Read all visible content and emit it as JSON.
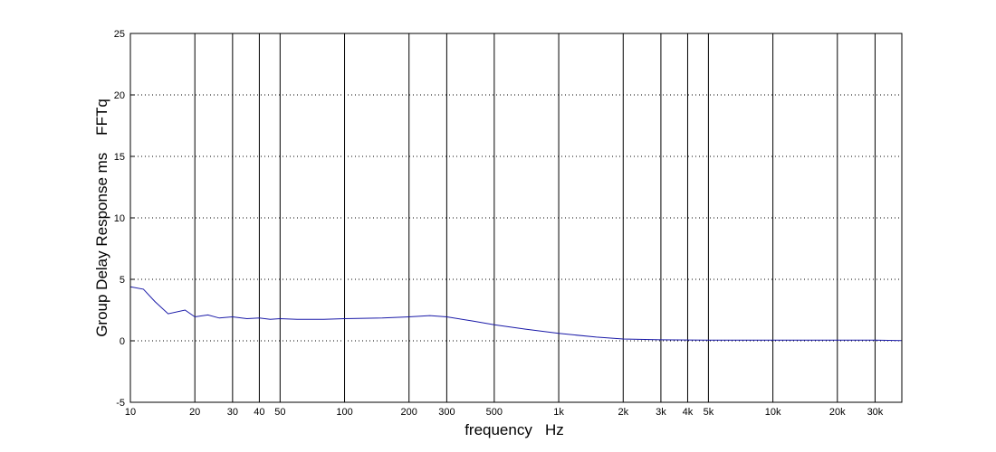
{
  "chart_data": {
    "type": "line",
    "title": "",
    "xlabel": "frequency   Hz",
    "ylabel": "Group Delay Response ms    FFTq",
    "x_scale": "log",
    "xlim": [
      10,
      40000
    ],
    "ylim": [
      -5,
      25
    ],
    "yticks": [
      -5,
      0,
      5,
      10,
      15,
      20,
      25
    ],
    "xticks": [
      {
        "value": 10,
        "label": "10"
      },
      {
        "value": 20,
        "label": "20"
      },
      {
        "value": 30,
        "label": "30"
      },
      {
        "value": 40,
        "label": "40"
      },
      {
        "value": 50,
        "label": "50"
      },
      {
        "value": 100,
        "label": "100"
      },
      {
        "value": 200,
        "label": "200"
      },
      {
        "value": 300,
        "label": "300"
      },
      {
        "value": 500,
        "label": "500"
      },
      {
        "value": 1000,
        "label": "1k"
      },
      {
        "value": 2000,
        "label": "2k"
      },
      {
        "value": 3000,
        "label": "3k"
      },
      {
        "value": 4000,
        "label": "4k"
      },
      {
        "value": 5000,
        "label": "5k"
      },
      {
        "value": 10000,
        "label": "10k"
      },
      {
        "value": 20000,
        "label": "20k"
      },
      {
        "value": 30000,
        "label": "30k"
      }
    ],
    "grid": {
      "x": "solid",
      "y": "dotted"
    },
    "line_color": "#1a1aa8",
    "series": [
      {
        "x": [
          10,
          11.5,
          13,
          15,
          18,
          20,
          23,
          26,
          30,
          35,
          40,
          45,
          50,
          60,
          80,
          100,
          150,
          200,
          250,
          300,
          400,
          500,
          700,
          1000,
          1500,
          2000,
          3000,
          5000,
          10000,
          20000,
          30000,
          40000
        ],
        "values": [
          4.4,
          4.2,
          3.2,
          2.2,
          2.5,
          1.95,
          2.1,
          1.85,
          1.95,
          1.8,
          1.85,
          1.75,
          1.8,
          1.75,
          1.75,
          1.8,
          1.85,
          1.95,
          2.05,
          1.95,
          1.6,
          1.3,
          0.95,
          0.6,
          0.3,
          0.15,
          0.08,
          0.05,
          0.05,
          0.05,
          0.05,
          0.02
        ]
      }
    ]
  }
}
